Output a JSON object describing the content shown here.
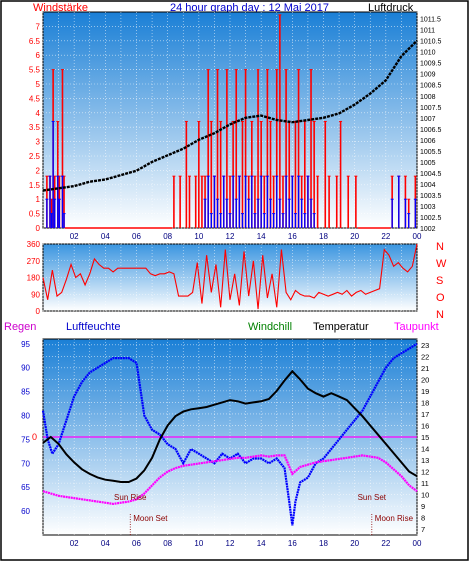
{
  "header": {
    "left_label": "Windstärke",
    "title": "24 hour graph day : 12 Mai 2017",
    "right_label": "Luftdruck"
  },
  "panel3_labels": {
    "rain": "Regen",
    "humidity": "Luftfeuchte",
    "windchill": "Windchill",
    "temperature": "Temperatur",
    "dewpoint": "Taupunkt"
  },
  "events": {
    "sun_rise": "Sun Rise",
    "moon_set": "Moon Set",
    "sun_set": "Sun Set",
    "moon_rise": "Moon Rise"
  },
  "colors": {
    "wind_gust": "#ff0000",
    "wind_avg": "#0000ff",
    "pressure": "#000000",
    "direction": "#ff0000",
    "humidity": "#0000ff",
    "temperature": "#000000",
    "dewpoint": "#ff00ff",
    "rain": "#ff0000"
  },
  "chart_data": [
    {
      "type": "bar",
      "name": "wind_and_pressure",
      "x_ticks": [
        "02",
        "04",
        "06",
        "08",
        "10",
        "12",
        "14",
        "16",
        "18",
        "20",
        "22",
        "00"
      ],
      "y_left": {
        "label": "Windstärke",
        "range": [
          0,
          7.5
        ],
        "ticks": [
          "0",
          "0.5",
          "1",
          "1.5",
          "2",
          "2.5",
          "3",
          "3.5",
          "4",
          "4.5",
          "5",
          "5.5",
          "6",
          "6.5",
          "7"
        ]
      },
      "y_right": {
        "label": "Luftdruck",
        "range": [
          1002,
          1011.8
        ],
        "ticks": [
          "1002",
          "1002.5",
          "1003",
          "1003.5",
          "1004",
          "1004.5",
          "1005",
          "1005.5",
          "1006",
          "1006.5",
          "1007",
          "1007.5",
          "1008",
          "1008.5",
          "1009",
          "1009.5",
          "1010",
          "1010.5",
          "1011",
          "1011.5"
        ]
      },
      "pressure": {
        "hours": [
          0,
          1,
          2,
          3,
          4,
          5,
          6,
          7,
          8,
          9,
          10,
          11,
          12,
          13,
          14,
          15,
          16,
          17,
          18,
          19,
          20,
          21,
          22,
          23,
          24
        ],
        "values": [
          1003.7,
          1003.8,
          1003.9,
          1004.1,
          1004.2,
          1004.4,
          1004.6,
          1005.0,
          1005.3,
          1005.6,
          1006.0,
          1006.3,
          1006.7,
          1007.0,
          1007.1,
          1006.9,
          1006.8,
          1006.9,
          1007.0,
          1007.2,
          1007.6,
          1008.1,
          1008.7,
          1009.8,
          1010.5
        ]
      },
      "wind_gust_segments": [
        {
          "from": 0.2,
          "to": 1.4,
          "values": [
            1.8,
            0,
            1.8,
            1.0,
            5.5,
            1.8,
            0,
            3.7,
            1.8,
            0,
            5.5,
            1.8
          ]
        },
        {
          "from": 1.4,
          "to": 8.3,
          "values": [
            0
          ]
        },
        {
          "from": 8.3,
          "to": 10.3,
          "values": [
            1.8,
            0,
            1.8,
            0,
            3.7,
            1.8,
            0,
            1.8,
            3.7,
            1.8
          ]
        },
        {
          "from": 10.3,
          "to": 17.5,
          "values": [
            1.8,
            5.5,
            3.7,
            1.8,
            5.5,
            3.7,
            1.8,
            5.5,
            1.8,
            3.7,
            5.5,
            1.8,
            3.7,
            5.5,
            1.8,
            3.7,
            1.8,
            5.5,
            3.7,
            1.8,
            5.5,
            3.7,
            1.8,
            5.5,
            7.4,
            1.8,
            5.5,
            3.7,
            1.8,
            3.7,
            5.5,
            1.8,
            3.7,
            1.8,
            5.5,
            3.7
          ]
        },
        {
          "from": 17.5,
          "to": 20.2,
          "values": [
            1.8,
            0,
            3.7,
            1.8,
            0,
            1.8,
            3.7,
            0,
            1.8,
            0,
            1.8
          ]
        },
        {
          "from": 20.2,
          "to": 22.3,
          "values": [
            0
          ]
        },
        {
          "from": 22.3,
          "to": 24,
          "values": [
            1.8,
            0,
            1.8,
            0,
            1.8,
            1.0,
            0,
            1.8
          ]
        }
      ],
      "wind_avg_segments": [
        {
          "from": 0.2,
          "to": 1.4,
          "values": [
            1.0,
            0,
            1.8,
            0.5,
            3.7,
            1.0,
            0,
            1.8,
            1.0,
            0,
            1.8,
            0.5
          ]
        },
        {
          "from": 10.3,
          "to": 17.5,
          "values": [
            1.0,
            1.8,
            0.5,
            1.8,
            1.0,
            0.5,
            1.8,
            1.0,
            0.5,
            1.8,
            1.0,
            1.8,
            0.5,
            1.8,
            1.0,
            1.8,
            0.5,
            1.0,
            1.8,
            0.5,
            1.8,
            1.0,
            0.5,
            1.8,
            1.0,
            0.5,
            1.8,
            1.0,
            1.8,
            0.5,
            1.8,
            1.0,
            0.5,
            1.8,
            1.0,
            0.5
          ]
        },
        {
          "from": 22.3,
          "to": 24,
          "values": [
            1.0,
            0,
            1.8,
            0,
            1.0,
            0.5,
            0,
            1.0
          ]
        }
      ]
    },
    {
      "type": "line",
      "name": "wind_direction",
      "y_ticks": [
        "0",
        "90",
        "180",
        "270",
        "360"
      ],
      "y_range": [
        0,
        360
      ],
      "compass": [
        "N",
        "W",
        "S",
        "O",
        "N"
      ],
      "x_ticks": [
        "02",
        "04",
        "06",
        "08",
        "10",
        "12",
        "14",
        "16",
        "18",
        "20",
        "22",
        "00"
      ],
      "direction": {
        "hours": [
          0,
          0.3,
          0.6,
          0.9,
          1.2,
          1.5,
          1.8,
          2.1,
          2.4,
          2.7,
          3.0,
          3.3,
          3.6,
          3.9,
          4.2,
          4.5,
          4.8,
          5.1,
          5.4,
          5.7,
          6.0,
          6.3,
          6.6,
          6.9,
          7.2,
          7.5,
          7.8,
          8.1,
          8.4,
          8.7,
          9.0,
          9.3,
          9.6,
          9.9,
          10.2,
          10.5,
          10.8,
          11.1,
          11.4,
          11.7,
          12.0,
          12.3,
          12.6,
          12.9,
          13.2,
          13.5,
          13.8,
          14.1,
          14.4,
          14.7,
          15.0,
          15.3,
          15.6,
          15.9,
          16.2,
          16.5,
          16.8,
          17.1,
          17.4,
          17.7,
          18.0,
          18.3,
          18.6,
          18.9,
          19.2,
          19.5,
          19.8,
          20.1,
          20.4,
          20.7,
          21.0,
          21.3,
          21.6,
          21.9,
          22.2,
          22.5,
          22.8,
          23.1,
          23.4,
          23.7,
          24.0
        ],
        "values": [
          180,
          60,
          220,
          80,
          100,
          170,
          250,
          180,
          200,
          140,
          200,
          280,
          250,
          230,
          230,
          210,
          230,
          230,
          230,
          230,
          230,
          230,
          230,
          200,
          190,
          200,
          200,
          210,
          200,
          80,
          80,
          80,
          100,
          260,
          40,
          300,
          100,
          250,
          20,
          330,
          60,
          200,
          30,
          320,
          80,
          270,
          10,
          300,
          70,
          200,
          20,
          330,
          100,
          60,
          110,
          90,
          80,
          80,
          70,
          100,
          90,
          80,
          90,
          100,
          90,
          110,
          80,
          100,
          110,
          90,
          100,
          110,
          120,
          330,
          300,
          240,
          260,
          230,
          210,
          240,
          360
        ]
      }
    },
    {
      "type": "line",
      "name": "humidity_temperature_dewpoint",
      "x_ticks": [
        "02",
        "04",
        "06",
        "08",
        "10",
        "12",
        "14",
        "16",
        "18",
        "20",
        "22",
        "00"
      ],
      "y_left": {
        "label": "Luftfeuchte",
        "range": [
          55,
          96
        ],
        "ticks": [
          "60",
          "65",
          "70",
          "75",
          "80",
          "85",
          "90",
          "95"
        ]
      },
      "y_right": {
        "label": "Temperatur",
        "range": [
          6.5,
          23.5
        ],
        "ticks": [
          "7",
          "8",
          "9",
          "10",
          "11",
          "12",
          "13",
          "14",
          "15",
          "16",
          "17",
          "18",
          "19",
          "20",
          "21",
          "22",
          "23"
        ]
      },
      "rain_zero_label": "0",
      "rain_zero_value": 15,
      "humidity": {
        "hours": [
          0,
          0.3,
          0.6,
          1,
          1.5,
          2,
          2.5,
          3,
          3.5,
          4,
          4.5,
          5,
          5.5,
          6,
          6.5,
          7,
          7.5,
          8,
          8.5,
          9,
          9.5,
          10,
          10.5,
          11,
          11.5,
          12,
          12.5,
          13,
          13.5,
          14,
          14.5,
          15,
          15.5,
          15.8,
          16,
          16.2,
          16.5,
          17,
          17.5,
          18,
          18.5,
          19,
          19.5,
          20,
          20.5,
          21,
          21.5,
          22,
          22.5,
          23,
          23.5,
          24
        ],
        "values": [
          81,
          75,
          72,
          74,
          79,
          84,
          87,
          89,
          90,
          91,
          92,
          92,
          92,
          91,
          80,
          77,
          76,
          74,
          73,
          70,
          73,
          72,
          71,
          70,
          72,
          71,
          72,
          70,
          71,
          71,
          70,
          71,
          69,
          62,
          57,
          62,
          66,
          67,
          70,
          71,
          73,
          75,
          77,
          79,
          81,
          84,
          87,
          90,
          92,
          93,
          94,
          95
        ]
      },
      "temperature": {
        "hours": [
          0,
          0.5,
          1,
          1.5,
          2,
          2.5,
          3,
          3.5,
          4,
          4.5,
          5,
          5.5,
          6,
          6.5,
          7,
          7.5,
          8,
          8.5,
          9,
          9.5,
          10,
          10.5,
          11,
          11.5,
          12,
          12.5,
          13,
          13.5,
          14,
          14.5,
          15,
          15.5,
          16,
          16.5,
          17,
          17.5,
          18,
          18.5,
          19,
          19.5,
          20,
          20.5,
          21,
          21.5,
          22,
          22.5,
          23,
          23.5,
          24
        ],
        "values": [
          14.5,
          15.0,
          14.4,
          13.5,
          12.8,
          12.2,
          11.8,
          11.5,
          11.3,
          11.2,
          11.1,
          11.1,
          11.4,
          12.1,
          13.2,
          14.8,
          16.0,
          16.8,
          17.2,
          17.4,
          17.5,
          17.6,
          17.8,
          18.0,
          18.2,
          18.1,
          17.9,
          18.0,
          18.1,
          18.3,
          19.0,
          19.9,
          20.7,
          20.0,
          19.2,
          18.8,
          18.5,
          18.8,
          18.5,
          18.2,
          17.5,
          16.8,
          16.0,
          15.2,
          14.4,
          13.6,
          12.8,
          12.0,
          11.6
        ]
      },
      "dewpoint": {
        "hours": [
          0,
          0.5,
          1,
          1.5,
          2,
          2.5,
          3,
          3.5,
          4,
          4.5,
          5,
          5.5,
          6,
          6.5,
          7,
          7.5,
          8,
          8.5,
          9,
          9.5,
          10,
          10.5,
          11,
          11.5,
          12,
          12.5,
          13,
          13.5,
          14,
          14.5,
          15,
          15.5,
          16,
          16.5,
          17,
          17.5,
          18,
          18.5,
          19,
          19.5,
          20,
          20.5,
          21,
          21.5,
          22,
          22.5,
          23,
          23.5,
          24
        ],
        "values": [
          10.3,
          10.1,
          9.9,
          9.8,
          9.7,
          9.6,
          9.5,
          9.4,
          9.3,
          9.2,
          9.3,
          9.4,
          9.6,
          10.1,
          10.8,
          11.5,
          12.0,
          12.3,
          12.5,
          12.6,
          12.7,
          12.8,
          12.9,
          13.0,
          13.1,
          13.2,
          13.2,
          13.3,
          13.4,
          13.3,
          13.4,
          13.4,
          11.8,
          12.4,
          12.6,
          12.8,
          12.9,
          13.0,
          13.1,
          13.2,
          13.3,
          13.4,
          13.3,
          13.2,
          12.8,
          12.2,
          11.6,
          10.8,
          10.3
        ]
      },
      "event_hours": {
        "sun_rise": 5.6,
        "moon_set": 5.6,
        "sun_set": 21.1,
        "moon_rise": 21.1
      }
    }
  ]
}
